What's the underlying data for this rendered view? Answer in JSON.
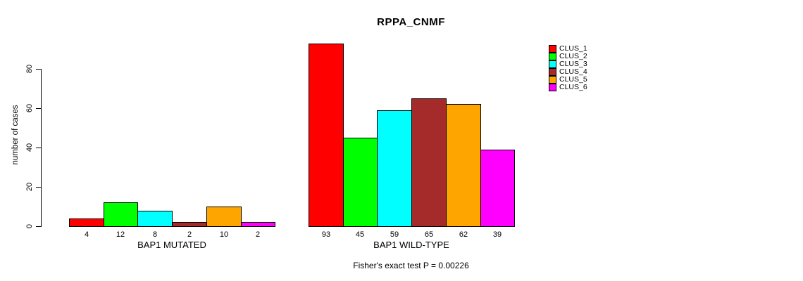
{
  "title": "RPPA_CNMF",
  "footer_text": "Fisher's exact test P = 0.00226",
  "background_color": "#FFFFFF",
  "chart_data": {
    "type": "bar",
    "title": "RPPA_CNMF",
    "xlabel": "",
    "ylabel": "number of cases",
    "ylim": [
      0,
      93
    ],
    "yticks": [
      0,
      20,
      40,
      60,
      80
    ],
    "grid": false,
    "legend_position": "right",
    "categories": [
      "BAP1 MUTATED",
      "BAP1 WILD-TYPE"
    ],
    "series": [
      {
        "name": "CLUS_1",
        "color": "#FF0000",
        "values": [
          4,
          93
        ]
      },
      {
        "name": "CLUS_2",
        "color": "#00FF00",
        "values": [
          12,
          45
        ]
      },
      {
        "name": "CLUS_3",
        "color": "#00FFFF",
        "values": [
          8,
          59
        ]
      },
      {
        "name": "CLUS_4",
        "color": "#A52A2A",
        "values": [
          2,
          65
        ]
      },
      {
        "name": "CLUS_5",
        "color": "#FFA500",
        "values": [
          10,
          62
        ]
      },
      {
        "name": "CLUS_6",
        "color": "#FF00FF",
        "values": [
          2,
          39
        ]
      }
    ],
    "bar_value_labels_shown": true,
    "annotation": "Fisher's exact test P = 0.00226"
  }
}
